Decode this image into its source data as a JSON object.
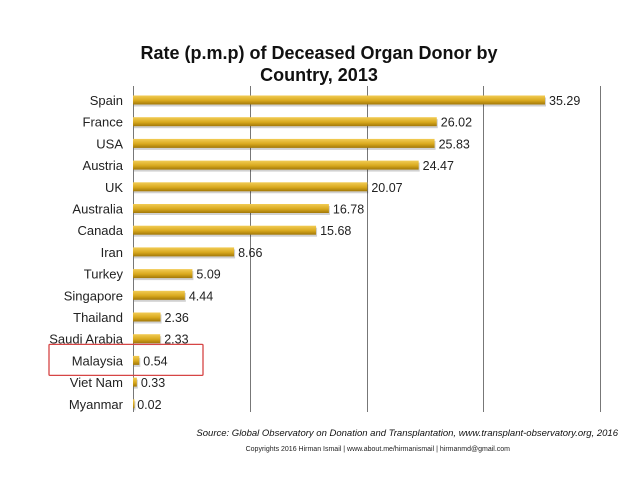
{
  "chart_data": {
    "type": "bar",
    "orientation": "horizontal",
    "title_line1": "Rate (p.m.p) of Deceased Organ Donor by",
    "title_line2": "Country, 2013",
    "categories": [
      "Spain",
      "France",
      "USA",
      "Austria",
      "UK",
      "Australia",
      "Canada",
      "Iran",
      "Turkey",
      "Singapore",
      "Thailand",
      "Saudi Arabia",
      "Malaysia",
      "Viet Nam",
      "Myanmar"
    ],
    "values": [
      35.29,
      26.02,
      25.83,
      24.47,
      20.07,
      16.78,
      15.68,
      8.66,
      5.09,
      4.44,
      2.36,
      2.33,
      0.54,
      0.33,
      0.02
    ],
    "value_labels": [
      "35.29",
      "26.02",
      "25.83",
      "24.47",
      "20.07",
      "16.78",
      "15.68",
      "8.66",
      "5.09",
      "4.44",
      "2.36",
      "2.33",
      "0.54",
      "0.33",
      "0.02"
    ],
    "xlim": [
      0,
      40
    ],
    "grid": true,
    "highlighted_category": "Malaysia",
    "colors": {
      "bar": "#d9a91e",
      "bar_light": "#f2cc55",
      "bar_dark": "#a27808",
      "highlight_box": "#d64545",
      "gridline": "#555555"
    }
  },
  "source": "Source: Global Observatory on Donation and Transplantation, www.transplant-observatory.org, 2016",
  "copyright": "Copyrights 2016 Hirman Ismail | www.about.me/hirmanismail | hirmanmd@gmail.com"
}
